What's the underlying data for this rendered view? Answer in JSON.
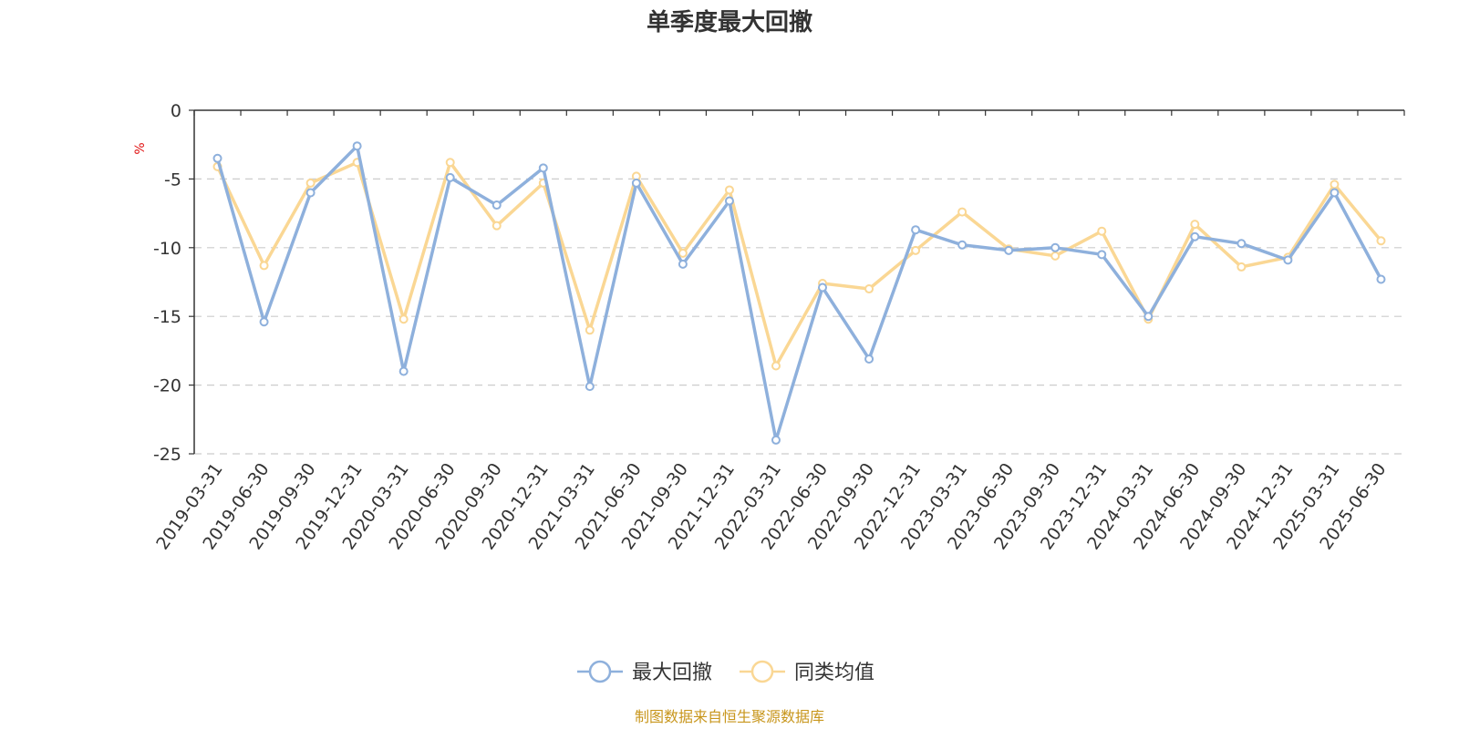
{
  "chart_data": {
    "type": "line",
    "title": "单季度最大回撤",
    "ylabel": "%",
    "ylim": [
      -25,
      0
    ],
    "yticks": [
      0,
      -5,
      -10,
      -15,
      -20,
      -25
    ],
    "grid": true,
    "legend_position": "bottom",
    "categories": [
      "2019-03-31",
      "2019-06-30",
      "2019-09-30",
      "2019-12-31",
      "2020-03-31",
      "2020-06-30",
      "2020-09-30",
      "2020-12-31",
      "2021-03-31",
      "2021-06-30",
      "2021-09-30",
      "2021-12-31",
      "2022-03-31",
      "2022-06-30",
      "2022-09-30",
      "2022-12-31",
      "2023-03-31",
      "2023-06-30",
      "2023-09-30",
      "2023-12-31",
      "2024-03-31",
      "2024-06-30",
      "2024-09-30",
      "2024-12-31",
      "2025-03-31",
      "2025-06-30"
    ],
    "series": [
      {
        "name": "最大回撤",
        "color": "#8eb0dc",
        "values": [
          -3.5,
          -15.4,
          -6.0,
          -2.6,
          -19.0,
          -4.9,
          -6.9,
          -4.2,
          -20.1,
          -5.3,
          -11.2,
          -6.6,
          -24.0,
          -12.9,
          -18.1,
          -8.7,
          -9.8,
          -10.2,
          -10.0,
          -10.5,
          -15.0,
          -9.2,
          -9.7,
          -10.9,
          -6.0,
          -12.3
        ]
      },
      {
        "name": "同类均值",
        "color": "#fad794",
        "values": [
          -4.1,
          -11.3,
          -5.3,
          -3.8,
          -15.2,
          -3.8,
          -8.4,
          -5.3,
          -16.0,
          -4.8,
          -10.4,
          -5.8,
          -18.6,
          -12.6,
          -13.0,
          -10.2,
          -7.4,
          -10.1,
          -10.6,
          -8.8,
          -15.2,
          -8.3,
          -11.4,
          -10.7,
          -5.4,
          -9.5
        ]
      }
    ]
  },
  "source": "制图数据来自恒生聚源数据库",
  "colors": {
    "source": "#c8961c",
    "unit": "#e01010",
    "grid": "#cccccc",
    "axis": "#333333"
  }
}
